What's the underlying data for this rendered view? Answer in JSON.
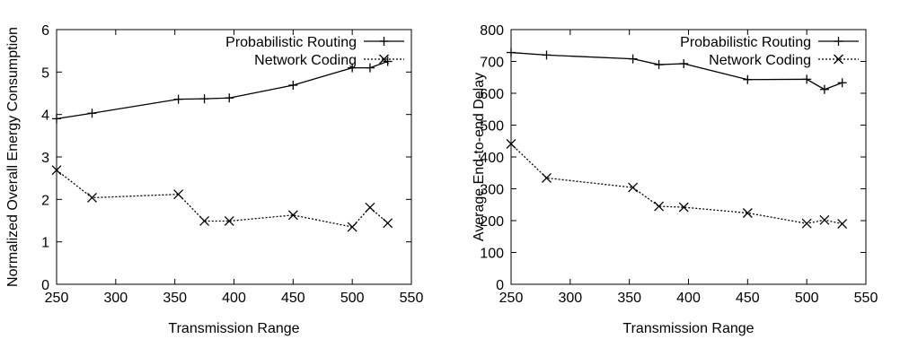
{
  "chart_data": [
    {
      "type": "line",
      "xlabel": "Transmission Range",
      "ylabel": "Normalized Overall Energy Consumption",
      "xlim": [
        250,
        550
      ],
      "ylim": [
        0,
        6
      ],
      "xticks": [
        250,
        300,
        350,
        400,
        450,
        500,
        550
      ],
      "yticks": [
        0,
        1,
        2,
        3,
        4,
        5,
        6
      ],
      "grid": false,
      "legend": "top-right",
      "series": [
        {
          "name": "Probabilistic Routing",
          "marker": "plus",
          "line": "solid",
          "x": [
            250,
            280,
            353,
            375,
            396,
            450,
            500,
            515,
            530
          ],
          "y": [
            3.9,
            4.03,
            4.36,
            4.37,
            4.39,
            4.69,
            5.1,
            5.1,
            5.25
          ]
        },
        {
          "name": "Network Coding",
          "marker": "cross",
          "line": "dashed",
          "x": [
            250,
            280,
            353,
            375,
            396,
            450,
            500,
            515,
            530
          ],
          "y": [
            2.69,
            2.04,
            2.12,
            1.49,
            1.49,
            1.63,
            1.35,
            1.81,
            1.44
          ]
        }
      ]
    },
    {
      "type": "line",
      "xlabel": "Transmission Range",
      "ylabel": "Average End-to-end Delay",
      "xlim": [
        250,
        550
      ],
      "ylim": [
        0,
        800
      ],
      "xticks": [
        250,
        300,
        350,
        400,
        450,
        500,
        550
      ],
      "yticks": [
        0,
        100,
        200,
        300,
        400,
        500,
        600,
        700,
        800
      ],
      "grid": false,
      "legend": "top-right",
      "series": [
        {
          "name": "Probabilistic Routing",
          "marker": "plus",
          "line": "solid",
          "x": [
            250,
            280,
            353,
            375,
            396,
            450,
            500,
            515,
            530
          ],
          "y": [
            728,
            720,
            708,
            690,
            693,
            643,
            644,
            612,
            633
          ]
        },
        {
          "name": "Network Coding",
          "marker": "cross",
          "line": "dashed",
          "x": [
            250,
            280,
            353,
            375,
            396,
            450,
            500,
            515,
            530
          ],
          "y": [
            441,
            334,
            304,
            245,
            242,
            224,
            191,
            202,
            190
          ]
        }
      ]
    }
  ]
}
